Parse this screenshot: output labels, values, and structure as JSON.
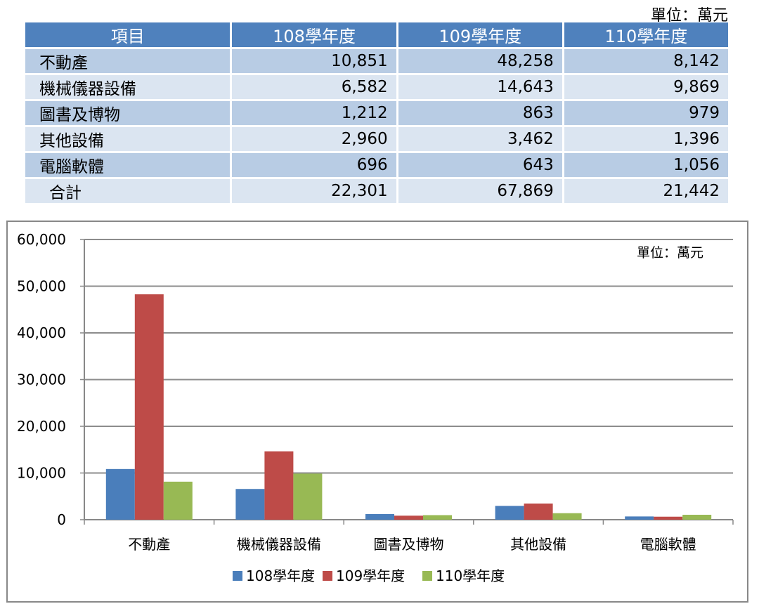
{
  "unit_label": "單位：萬元",
  "table": {
    "headers": [
      "項目",
      "108學年度",
      "109學年度",
      "110學年度"
    ],
    "rows": [
      {
        "item": "不動產",
        "v108": "10,851",
        "v109": "48,258",
        "v110": "8,142"
      },
      {
        "item": "機械儀器設備",
        "v108": "6,582",
        "v109": "14,643",
        "v110": "9,869"
      },
      {
        "item": "圖書及博物",
        "v108": "1,212",
        "v109": "863",
        "v110": "979"
      },
      {
        "item": "其他設備",
        "v108": "2,960",
        "v109": "3,462",
        "v110": "1,396"
      },
      {
        "item": "電腦軟體",
        "v108": "696",
        "v109": "643",
        "v110": "1,056"
      },
      {
        "item": "合計",
        "v108": "22,301",
        "v109": "67,869",
        "v110": "21,442"
      }
    ]
  },
  "chart_data": {
    "type": "bar",
    "unit_label": "單位：萬元",
    "categories": [
      "不動產",
      "機械儀器設備",
      "圖書及博物",
      "其他設備",
      "電腦軟體"
    ],
    "series": [
      {
        "name": "108學年度",
        "values": [
          10851,
          6582,
          1212,
          2960,
          696
        ],
        "color": "#4a7ebb"
      },
      {
        "name": "109學年度",
        "values": [
          48258,
          14643,
          863,
          3462,
          643
        ],
        "color": "#be4b48"
      },
      {
        "name": "110學年度",
        "values": [
          8142,
          9869,
          979,
          1396,
          1056
        ],
        "color": "#98b954"
      }
    ],
    "ylim": [
      0,
      60000
    ],
    "yticks": [
      "0",
      "10,000",
      "20,000",
      "30,000",
      "40,000",
      "50,000",
      "60,000"
    ],
    "grid": true,
    "legend_position": "bottom"
  }
}
